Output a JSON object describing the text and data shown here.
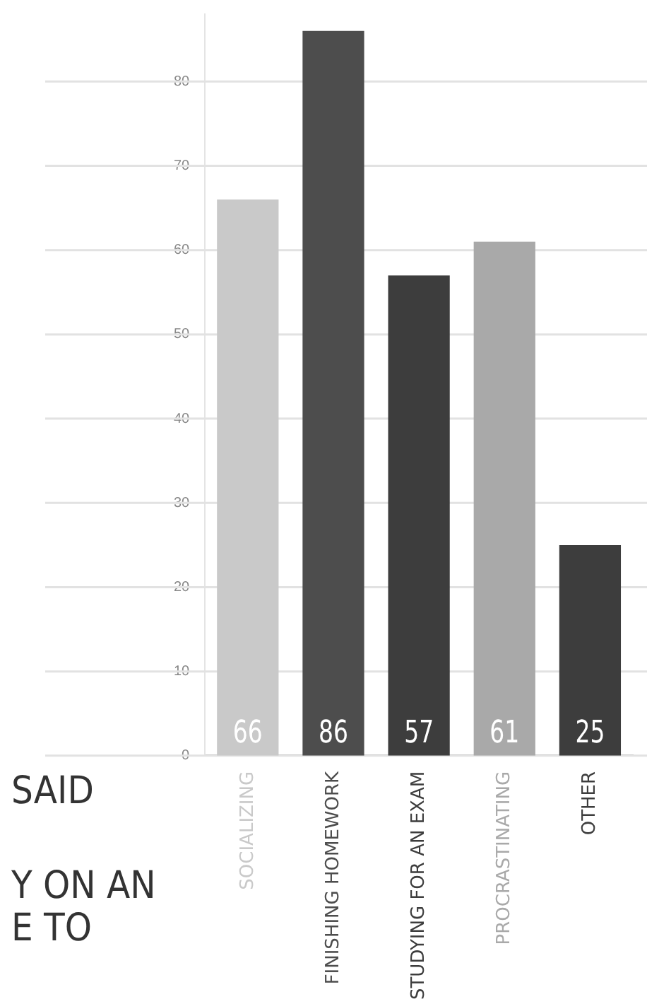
{
  "chart_data": {
    "type": "bar",
    "categories": [
      "SOCIALIZING",
      "FINISHING HOMEWORK",
      "STUDYING FOR AN EXAM",
      "PROCRASTINATING",
      "OTHER"
    ],
    "values": [
      66,
      86,
      57,
      61,
      25
    ],
    "colors": [
      "#c9c9c9",
      "#4d4d4d",
      "#3d3d3d",
      "#a9a9a9",
      "#3d3d3d"
    ],
    "ylim": [
      0,
      88
    ],
    "yticks": [
      0,
      10,
      20,
      30,
      40,
      50,
      60,
      70,
      80
    ],
    "grid": "y",
    "legend": false,
    "data_labels": true,
    "annotations": [
      "SAID",
      "Y ON AN",
      "E TO"
    ]
  }
}
